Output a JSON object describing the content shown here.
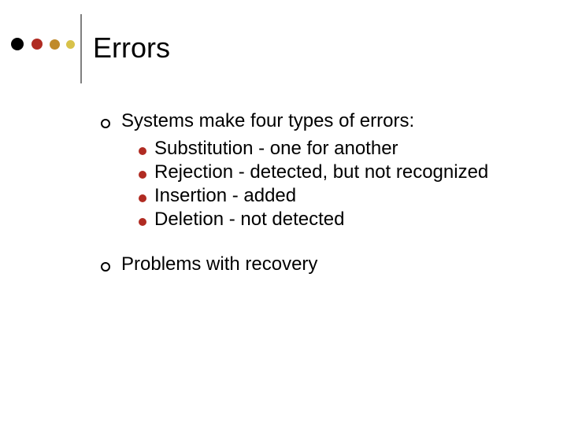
{
  "decor": {
    "dots": [
      {
        "size": 16,
        "color": "#000000",
        "gap": 10
      },
      {
        "size": 14,
        "color": "#b02b22",
        "gap": 9
      },
      {
        "size": 13,
        "color": "#c08a2a",
        "gap": 8
      },
      {
        "size": 11,
        "color": "#d8c24a",
        "gap": 0
      }
    ],
    "vline_color": "#808080"
  },
  "title": "Errors",
  "title_fontsize": 36,
  "body_fontsize": 24,
  "sub_bullet_color": "#b02b22",
  "items": [
    {
      "text": "Systems make four types of errors:",
      "sub": [
        "Substitution - one for another",
        "Rejection - detected, but not recognized",
        "Insertion - added",
        "Deletion - not detected"
      ]
    },
    {
      "text": "Problems with recovery",
      "sub": []
    }
  ]
}
